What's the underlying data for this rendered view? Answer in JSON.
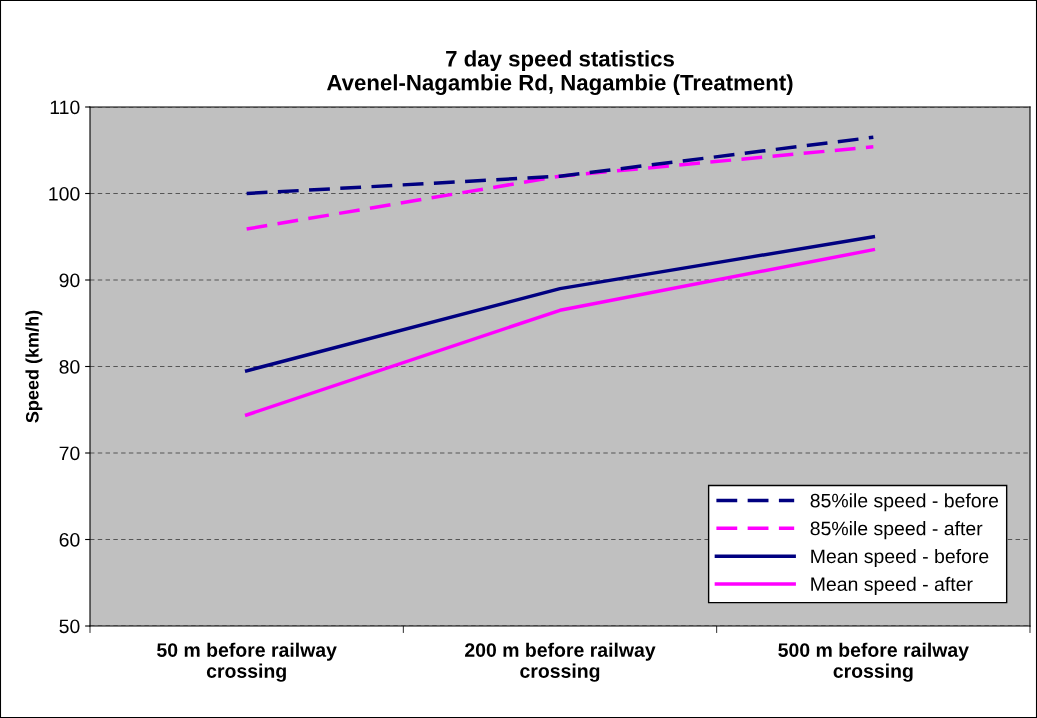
{
  "chart_data": {
    "type": "line",
    "title": "7 day speed statistics\nAvenel-Nagambie Rd, Nagambie (Treatment)",
    "ylabel": "Speed (km/h)",
    "categories": [
      "50 m before railway\ncrossing",
      "200 m before railway\ncrossing",
      "500 m before railway\ncrossing"
    ],
    "series": [
      {
        "name": "85%ile speed - before",
        "color": "#000080",
        "line_style": "dashed",
        "values": [
          100.0,
          102.0,
          106.5
        ]
      },
      {
        "name": "85%ile speed - after",
        "color": "#ff00ff",
        "line_style": "dashed",
        "values": [
          95.9,
          102.0,
          105.4
        ]
      },
      {
        "name": "Mean speed - before",
        "color": "#000080",
        "line_style": "solid",
        "values": [
          79.5,
          89.0,
          95.0
        ]
      },
      {
        "name": "Mean speed - after",
        "color": "#ff00ff",
        "line_style": "solid",
        "values": [
          74.4,
          86.5,
          93.5
        ]
      }
    ],
    "ylim": [
      50,
      110
    ],
    "yticks": [
      50,
      60,
      70,
      80,
      90,
      100,
      110
    ],
    "grid": "y",
    "legend": "bottom right",
    "marker": "none"
  }
}
